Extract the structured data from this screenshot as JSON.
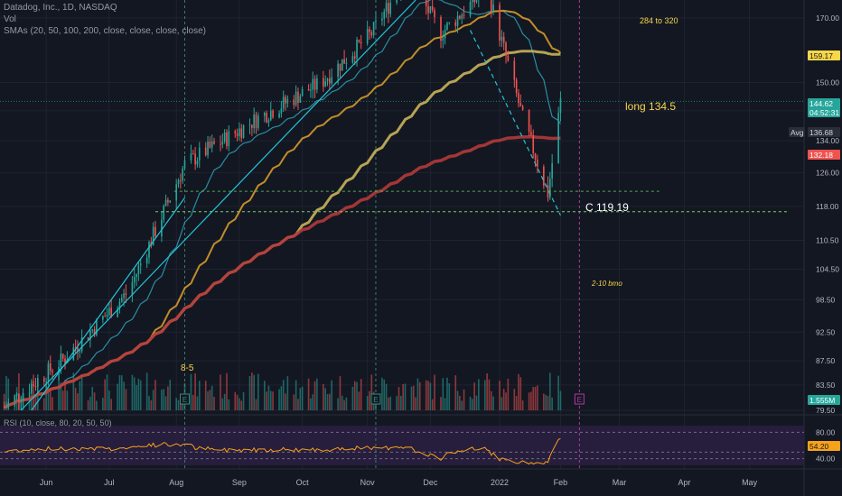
{
  "header": {
    "symbol_line": "Datadog, Inc., 1D, NASDAQ",
    "vol_label": "Vol",
    "sma_label": "SMAs (20, 50, 100, 200, close, close, close, close)"
  },
  "annotations": {
    "target": "284 to 320",
    "long": "long 134.5",
    "close": "C 119.19",
    "bmo": "2-10 bmo",
    "start": "8-5"
  },
  "price_axis": {
    "ticks": [
      "170.00",
      "150.00",
      "142.00",
      "134.00",
      "126.00",
      "118.00",
      "110.50",
      "104.50",
      "98.50",
      "92.50",
      "87.50",
      "83.50",
      "79.50"
    ],
    "tags": [
      {
        "text": "159.17",
        "bg": "#f7d64a",
        "fg": "#131722"
      },
      {
        "text": "144.62",
        "bg": "#26a69a",
        "fg": "#ffffff"
      },
      {
        "text": "04:52:31",
        "bg": "#26a69a",
        "fg": "#ffffff"
      },
      {
        "text": "Avg",
        "bg": "#2a2e39",
        "fg": "#d1d4dc"
      },
      {
        "text": "136.68",
        "bg": "#2a2e39",
        "fg": "#d1d4dc"
      },
      {
        "text": "132.18",
        "bg": "#ef5350",
        "fg": "#ffffff"
      },
      {
        "text": "1.555M",
        "bg": "#26a69a",
        "fg": "#ffffff"
      },
      {
        "text": "54.20",
        "bg": "#f7a21b",
        "fg": "#131722"
      }
    ]
  },
  "rsi_panel": {
    "label": "RSI (10, close, 80, 20, 50, 50)",
    "ticks": [
      "80.00",
      "40.00"
    ]
  },
  "time_axis": [
    "Jun",
    "Jul",
    "Aug",
    "Sep",
    "Oct",
    "Nov",
    "Dec",
    "2022",
    "Feb",
    "Mar",
    "Apr",
    "May"
  ],
  "earnings_marker": "E",
  "colors": {
    "background": "#131722",
    "up": "#26a69a",
    "down": "#ef5350",
    "sma20": "#2a9bb0",
    "sma50": "#d59a2a",
    "sma100": "#c9b35a",
    "sma200": "#b23a3a",
    "trend": "#22c5d8",
    "rsi": "#f7a21b",
    "rsi_band": "#2a1e40"
  },
  "chart_data": {
    "type": "candlestick",
    "price_scale": "log",
    "ylim": [
      79.5,
      176
    ],
    "x_range": [
      "2021-05-10",
      "2022-05-28"
    ],
    "key_levels": [
      {
        "label": "C 119.19",
        "value": 119.19
      },
      {
        "label": "long 134.5",
        "value": 134.5
      },
      {
        "value": 121.5
      }
    ],
    "ohlc_anchors": [
      {
        "date": "2021-05-12",
        "close": 80
      },
      {
        "date": "2021-06-10",
        "close": 88
      },
      {
        "date": "2021-07-10",
        "close": 100
      },
      {
        "date": "2021-08-06",
        "close": 128
      },
      {
        "date": "2021-09-10",
        "close": 140
      },
      {
        "date": "2021-10-10",
        "close": 150
      },
      {
        "date": "2021-11-03",
        "close": 165
      },
      {
        "date": "2021-11-20",
        "close": 185
      },
      {
        "date": "2021-12-06",
        "close": 165
      },
      {
        "date": "2021-12-28",
        "close": 180
      },
      {
        "date": "2022-01-05",
        "close": 160
      },
      {
        "date": "2022-01-14",
        "close": 140
      },
      {
        "date": "2022-01-26",
        "close": 121
      },
      {
        "date": "2022-02-01",
        "close": 144.62
      }
    ],
    "sma_series": [
      {
        "period": 20,
        "last": 139.44
      },
      {
        "period": 50,
        "last": 159.17
      },
      {
        "period": 100,
        "last": 161.54
      },
      {
        "period": 200,
        "last": 132.18
      }
    ],
    "volume_last": "1.555M",
    "rsi_last": 54.2
  }
}
